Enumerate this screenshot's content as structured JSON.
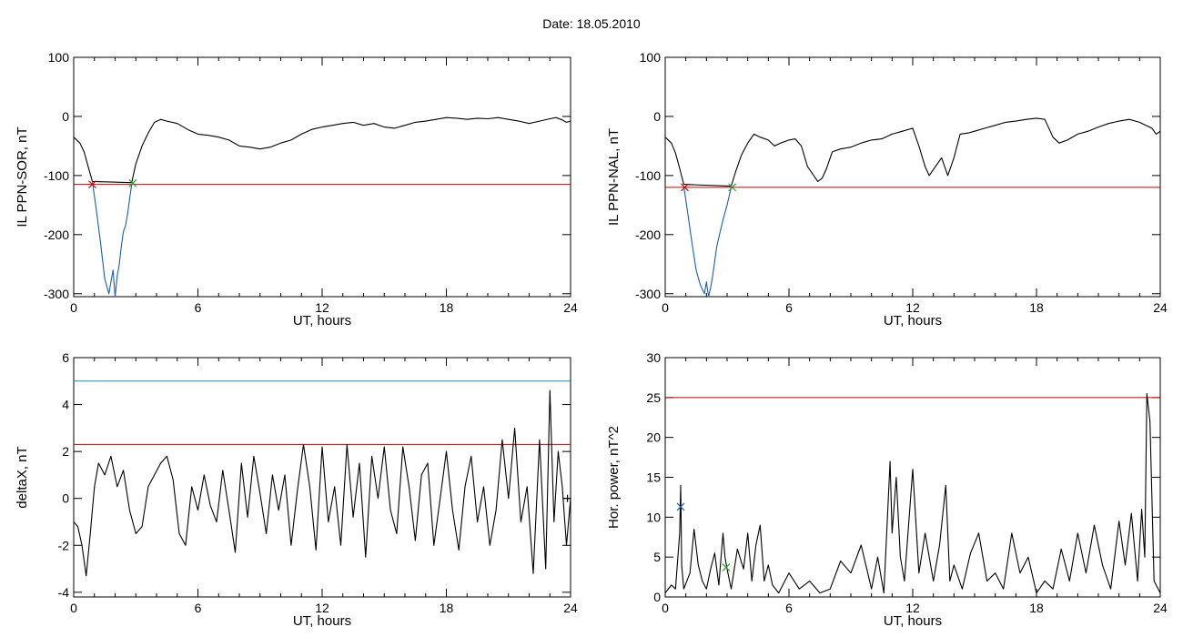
{
  "page_title": "Date:  18.05.2010",
  "chart_data": [
    {
      "type": "line",
      "xlabel": "UT, hours",
      "ylabel": "IL PPN-SOR, nT",
      "xlim": [
        0,
        24
      ],
      "ylim": [
        -305,
        100
      ],
      "xticks": [
        0,
        6,
        12,
        18,
        24
      ],
      "yticks": [
        100,
        0,
        -100,
        -200,
        -300
      ],
      "xtick_labels": [
        "0",
        "6",
        "12",
        "18",
        "24"
      ],
      "ytick_labels": [
        "100",
        "0",
        "-100",
        "-200",
        "-300"
      ],
      "grid": false,
      "series": [
        {
          "color": "#000000",
          "x": [
            0,
            0.3,
            0.5,
            0.7,
            0.9,
            2.8,
            3.0,
            3.3,
            3.6,
            3.9,
            4.2,
            4.5,
            5.0,
            5.5,
            6.0,
            6.5,
            7.0,
            7.5,
            8.0,
            8.5,
            9.0,
            9.5,
            10.0,
            10.5,
            11.0,
            11.5,
            12.0,
            12.5,
            13.0,
            13.5,
            14.0,
            14.5,
            15.0,
            15.5,
            16.0,
            16.5,
            17.0,
            17.5,
            18.0,
            18.5,
            19.0,
            19.5,
            20.0,
            20.5,
            21.0,
            21.5,
            22.0,
            22.5,
            23.0,
            23.3,
            23.6,
            23.8,
            24.0
          ],
          "y": [
            -35,
            -45,
            -60,
            -85,
            -110,
            -112,
            -80,
            -50,
            -28,
            -10,
            -5,
            -8,
            -12,
            -22,
            -30,
            -32,
            -35,
            -40,
            -50,
            -52,
            -55,
            -52,
            -45,
            -40,
            -30,
            -22,
            -18,
            -15,
            -12,
            -10,
            -15,
            -12,
            -18,
            -20,
            -15,
            -10,
            -8,
            -5,
            -2,
            -3,
            -5,
            -3,
            -4,
            -2,
            -5,
            -8,
            -12,
            -8,
            -4,
            -2,
            -6,
            -10,
            -8
          ]
        },
        {
          "color": "#1a5fb4",
          "x": [
            0.9,
            1.1,
            1.3,
            1.5,
            1.7,
            1.8,
            1.9,
            2.0,
            2.1,
            2.2,
            2.3,
            2.4,
            2.5,
            2.6,
            2.7,
            2.8
          ],
          "y": [
            -110,
            -160,
            -215,
            -275,
            -300,
            -280,
            -260,
            -305,
            -270,
            -250,
            -220,
            -195,
            -185,
            -165,
            -140,
            -115
          ]
        }
      ],
      "reference_line": {
        "y": -115,
        "color": "#cc0000"
      },
      "markers": [
        {
          "x": 0.9,
          "y": -115,
          "symbol": "x",
          "color": "#cc0000"
        },
        {
          "x": 2.85,
          "y": -113,
          "symbol": "x",
          "color": "#2a9d2a"
        }
      ]
    },
    {
      "type": "line",
      "xlabel": "UT, hours",
      "ylabel": "IL PPN-NAL, nT",
      "xlim": [
        0,
        24
      ],
      "ylim": [
        -305,
        100
      ],
      "xticks": [
        0,
        6,
        12,
        18,
        24
      ],
      "yticks": [
        100,
        0,
        -100,
        -200,
        -300
      ],
      "xtick_labels": [
        "0",
        "6",
        "12",
        "18",
        "24"
      ],
      "ytick_labels": [
        "100",
        "0",
        "-100",
        "-200",
        "-300"
      ],
      "grid": false,
      "series": [
        {
          "color": "#000000",
          "x": [
            0,
            0.3,
            0.5,
            0.7,
            0.9,
            3.2,
            3.4,
            3.7,
            4.0,
            4.3,
            4.6,
            5.0,
            5.3,
            5.6,
            6.0,
            6.3,
            6.6,
            6.9,
            7.2,
            7.4,
            7.6,
            7.8,
            8.1,
            8.5,
            9.0,
            9.5,
            10.0,
            10.5,
            11.0,
            11.5,
            12.0,
            12.3,
            12.6,
            12.8,
            13.1,
            13.4,
            13.7,
            14.0,
            14.3,
            14.7,
            15.0,
            15.5,
            16.0,
            16.5,
            17.0,
            17.5,
            18.0,
            18.4,
            18.8,
            19.1,
            19.5,
            20.0,
            20.5,
            21.0,
            21.5,
            22.0,
            22.5,
            23.0,
            23.3,
            23.6,
            23.8,
            24.0
          ],
          "y": [
            -35,
            -45,
            -62,
            -88,
            -115,
            -118,
            -95,
            -65,
            -45,
            -30,
            -35,
            -40,
            -50,
            -45,
            -40,
            -38,
            -50,
            -85,
            -100,
            -110,
            -105,
            -90,
            -60,
            -55,
            -52,
            -45,
            -40,
            -38,
            -30,
            -25,
            -20,
            -50,
            -85,
            -100,
            -85,
            -70,
            -100,
            -70,
            -30,
            -28,
            -25,
            -20,
            -15,
            -10,
            -8,
            -5,
            -3,
            -5,
            -35,
            -45,
            -40,
            -30,
            -25,
            -18,
            -12,
            -8,
            -5,
            -10,
            -15,
            -20,
            -30,
            -25
          ]
        },
        {
          "color": "#1a5fb4",
          "x": [
            0.9,
            1.1,
            1.3,
            1.5,
            1.7,
            1.9,
            2.0,
            2.1,
            2.2,
            2.3,
            2.4,
            2.5,
            2.6,
            2.8,
            3.0,
            3.2
          ],
          "y": [
            -118,
            -165,
            -215,
            -260,
            -285,
            -300,
            -280,
            -305,
            -290,
            -270,
            -245,
            -220,
            -205,
            -175,
            -150,
            -120
          ]
        }
      ],
      "reference_line": {
        "y": -120,
        "color": "#cc0000"
      },
      "markers": [
        {
          "x": 0.95,
          "y": -120,
          "symbol": "x",
          "color": "#cc0000"
        },
        {
          "x": 3.25,
          "y": -120,
          "symbol": "x",
          "color": "#2a9d2a"
        }
      ]
    },
    {
      "type": "line",
      "xlabel": "UT, hours",
      "ylabel": "deltaX, nT",
      "xlim": [
        0,
        24
      ],
      "ylim": [
        -4.2,
        6
      ],
      "xticks": [
        0,
        6,
        12,
        18,
        24
      ],
      "yticks": [
        6,
        4,
        2,
        0,
        -2,
        -4
      ],
      "xtick_labels": [
        "0",
        "6",
        "12",
        "18",
        "24"
      ],
      "ytick_labels": [
        "6",
        "4",
        "2",
        "0",
        "-2",
        "-4"
      ],
      "grid": false,
      "series": [
        {
          "color": "#000000",
          "x": [
            0,
            0.2,
            0.4,
            0.6,
            0.8,
            1.0,
            1.2,
            1.5,
            1.8,
            2.1,
            2.4,
            2.7,
            3.0,
            3.3,
            3.6,
            3.9,
            4.2,
            4.5,
            4.8,
            5.1,
            5.4,
            5.7,
            6.0,
            6.3,
            6.6,
            6.9,
            7.2,
            7.5,
            7.8,
            8.1,
            8.4,
            8.7,
            9.0,
            9.3,
            9.6,
            9.9,
            10.2,
            10.5,
            10.8,
            11.1,
            11.4,
            11.7,
            12.0,
            12.3,
            12.6,
            12.9,
            13.2,
            13.5,
            13.8,
            14.1,
            14.4,
            14.7,
            15.0,
            15.3,
            15.6,
            15.9,
            16.2,
            16.5,
            16.8,
            17.1,
            17.4,
            17.7,
            18.0,
            18.3,
            18.6,
            18.9,
            19.2,
            19.5,
            19.8,
            20.1,
            20.4,
            20.7,
            21.0,
            21.3,
            21.6,
            21.9,
            22.2,
            22.5,
            22.8,
            23.0,
            23.2,
            23.4,
            23.6,
            23.8,
            24.0
          ],
          "y": [
            -1,
            -1.2,
            -2,
            -3.3,
            -1.5,
            0.5,
            1.5,
            1.0,
            1.8,
            0.5,
            1.2,
            -0.5,
            -1.5,
            -1.2,
            0.5,
            1.0,
            1.5,
            1.8,
            0.8,
            -1.5,
            -2.0,
            0.5,
            -0.5,
            1.0,
            -0.3,
            -1.0,
            1.2,
            -0.5,
            -2.3,
            1.5,
            -0.8,
            1.8,
            0.2,
            -1.5,
            1.0,
            -0.5,
            1.0,
            -2.0,
            0.3,
            2.3,
            0.5,
            -2.2,
            2.2,
            -1.0,
            0.5,
            -2.0,
            2.3,
            -0.8,
            1.5,
            -2.5,
            1.8,
            0.0,
            2.2,
            -0.5,
            -1.5,
            2.2,
            0.5,
            -1.8,
            1.0,
            1.5,
            -2.0,
            0.0,
            2.0,
            -0.5,
            -2.2,
            0.5,
            1.8,
            -1.0,
            0.5,
            -2.0,
            -0.5,
            2.5,
            0.0,
            3.0,
            -1.0,
            0.5,
            -3.2,
            2.5,
            -3.0,
            4.6,
            -1.0,
            2.0,
            0.5,
            -2.0,
            0.0
          ]
        }
      ],
      "reference_lines": [
        {
          "y": 5.0,
          "color": "#1a8aa8"
        },
        {
          "y": 2.3,
          "color": "#cc0000"
        }
      ],
      "markers": [
        {
          "x": 23.85,
          "y": 0,
          "symbol": "+",
          "color": "#000000"
        }
      ]
    },
    {
      "type": "line",
      "xlabel": "UT, hours",
      "ylabel": "Hor. power, nT^2",
      "xlim": [
        0,
        24
      ],
      "ylim": [
        0,
        30
      ],
      "xticks": [
        0,
        6,
        12,
        18,
        24
      ],
      "yticks": [
        30,
        25,
        20,
        15,
        10,
        5,
        0
      ],
      "xtick_labels": [
        "0",
        "6",
        "12",
        "18",
        "24"
      ],
      "ytick_labels": [
        "30",
        "25",
        "20",
        "15",
        "10",
        "5",
        "0"
      ],
      "grid": false,
      "series": [
        {
          "color": "#000000",
          "x": [
            0,
            0.3,
            0.5,
            0.7,
            0.75,
            0.8,
            0.9,
            1.2,
            1.4,
            1.6,
            1.8,
            2.0,
            2.2,
            2.4,
            2.6,
            2.8,
            2.9,
            3.0,
            3.2,
            3.5,
            3.8,
            4.0,
            4.2,
            4.4,
            4.6,
            4.8,
            5.0,
            5.2,
            5.5,
            6.0,
            6.5,
            7.0,
            7.5,
            8.0,
            8.5,
            9.0,
            9.5,
            10.0,
            10.3,
            10.6,
            10.9,
            11.0,
            11.2,
            11.4,
            11.6,
            12.0,
            12.3,
            12.6,
            13.0,
            13.3,
            13.6,
            13.8,
            14.0,
            14.4,
            14.8,
            15.2,
            15.6,
            16.0,
            16.4,
            16.8,
            17.2,
            17.6,
            18.0,
            18.4,
            18.8,
            19.2,
            19.6,
            20.0,
            20.4,
            20.8,
            21.2,
            21.6,
            22.0,
            22.3,
            22.6,
            22.9,
            23.1,
            23.25,
            23.35,
            23.5,
            23.7,
            24.0
          ],
          "y": [
            0.5,
            1.5,
            1.0,
            8.0,
            14.0,
            4.0,
            1.0,
            3.0,
            8.5,
            4.0,
            2.0,
            1.0,
            3.5,
            5.5,
            1.5,
            8.0,
            5.0,
            3.5,
            1.0,
            6.0,
            3.5,
            8.0,
            2.0,
            6.5,
            9.0,
            2.0,
            4.0,
            1.5,
            0.5,
            3.0,
            1.0,
            2.0,
            0.5,
            1.0,
            4.5,
            3.0,
            6.5,
            1.0,
            5.0,
            0.5,
            17.0,
            8.0,
            15.0,
            5.0,
            2.0,
            16.0,
            3.0,
            8.0,
            2.0,
            6.5,
            14.0,
            2.0,
            4.0,
            1.0,
            5.5,
            8.0,
            2.0,
            3.0,
            1.0,
            8.0,
            3.0,
            5.0,
            0.5,
            2.0,
            1.0,
            6.0,
            2.0,
            8.0,
            3.0,
            9.0,
            4.0,
            1.0,
            9.5,
            4.0,
            10.5,
            2.0,
            11.0,
            5.0,
            25.5,
            22.0,
            2.0,
            0.5
          ]
        }
      ],
      "reference_line": {
        "y": 25,
        "color": "#cc0000"
      },
      "markers": [
        {
          "x": 0.75,
          "y": 11.3,
          "symbol": "x",
          "color": "#1a5fb4"
        },
        {
          "x": 2.95,
          "y": 3.7,
          "symbol": "x",
          "color": "#2a9d2a"
        }
      ]
    }
  ]
}
